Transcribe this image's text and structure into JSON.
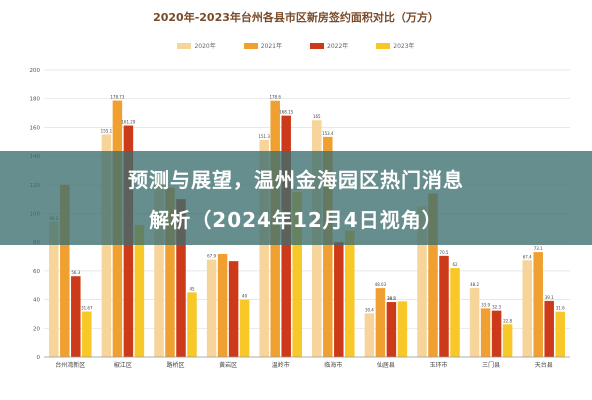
{
  "chart_data": {
    "type": "bar",
    "title": "2020年-2023年台州各县市区新房签约面积对比（万方）",
    "categories": [
      "台州湾新区",
      "椒江区",
      "路桥区",
      "黄岩区",
      "温岭市",
      "临海市",
      "仙居县",
      "玉环市",
      "三门县",
      "天台县"
    ],
    "series": [
      {
        "name": "2020年",
        "color": "#f6d49a",
        "values": [
          94.2,
          155.1,
          125.0,
          67.9,
          151.3,
          165.0,
          30.4,
          105.0,
          48.2,
          67.4
        ]
      },
      {
        "name": "2021年",
        "color": "#f0a030",
        "values": [
          120.0,
          178.7,
          118.0,
          71.8,
          178.6,
          153.4,
          48.0,
          114.0,
          33.9,
          73.1
        ]
      },
      {
        "name": "2022年",
        "color": "#cc3a1a",
        "values": [
          56.3,
          161.3,
          110.0,
          66.8,
          168.2,
          80.0,
          38.3,
          70.5,
          32.3,
          39.1
        ]
      },
      {
        "name": "2023年",
        "color": "#f8c828",
        "values": [
          31.7,
          92.0,
          45.0,
          40.0,
          115.0,
          88.0,
          38.8,
          62.0,
          22.8,
          31.6
        ]
      }
    ],
    "data_labels": [
      [
        "94.2",
        "56.3",
        "31.67"
      ],
      [
        "155.1",
        "178.73",
        "161.29"
      ],
      [
        "45"
      ],
      [
        "67.9",
        "40"
      ],
      [
        "151.3",
        "178.6",
        "168.15",
        "115"
      ],
      [
        "165",
        "153.4"
      ],
      [
        "30.4",
        "48.03",
        "38.3",
        "38.8"
      ],
      [
        "70.5",
        "62"
      ],
      [
        "48.2",
        "33.9",
        "32.3",
        "22.8"
      ],
      [
        "67.4",
        "73.1",
        "39.1",
        "31.6"
      ]
    ],
    "ylim": [
      0,
      200
    ],
    "yticks": [
      "0",
      "20",
      "40",
      "60",
      "80",
      "100",
      "120",
      "140",
      "160",
      "180",
      "200"
    ],
    "grid": true,
    "legend_position": "top"
  },
  "overlay": {
    "line1": "预测与展望，温州金海园区热门消息",
    "line2": "解析（2024年12月4日视角）"
  }
}
